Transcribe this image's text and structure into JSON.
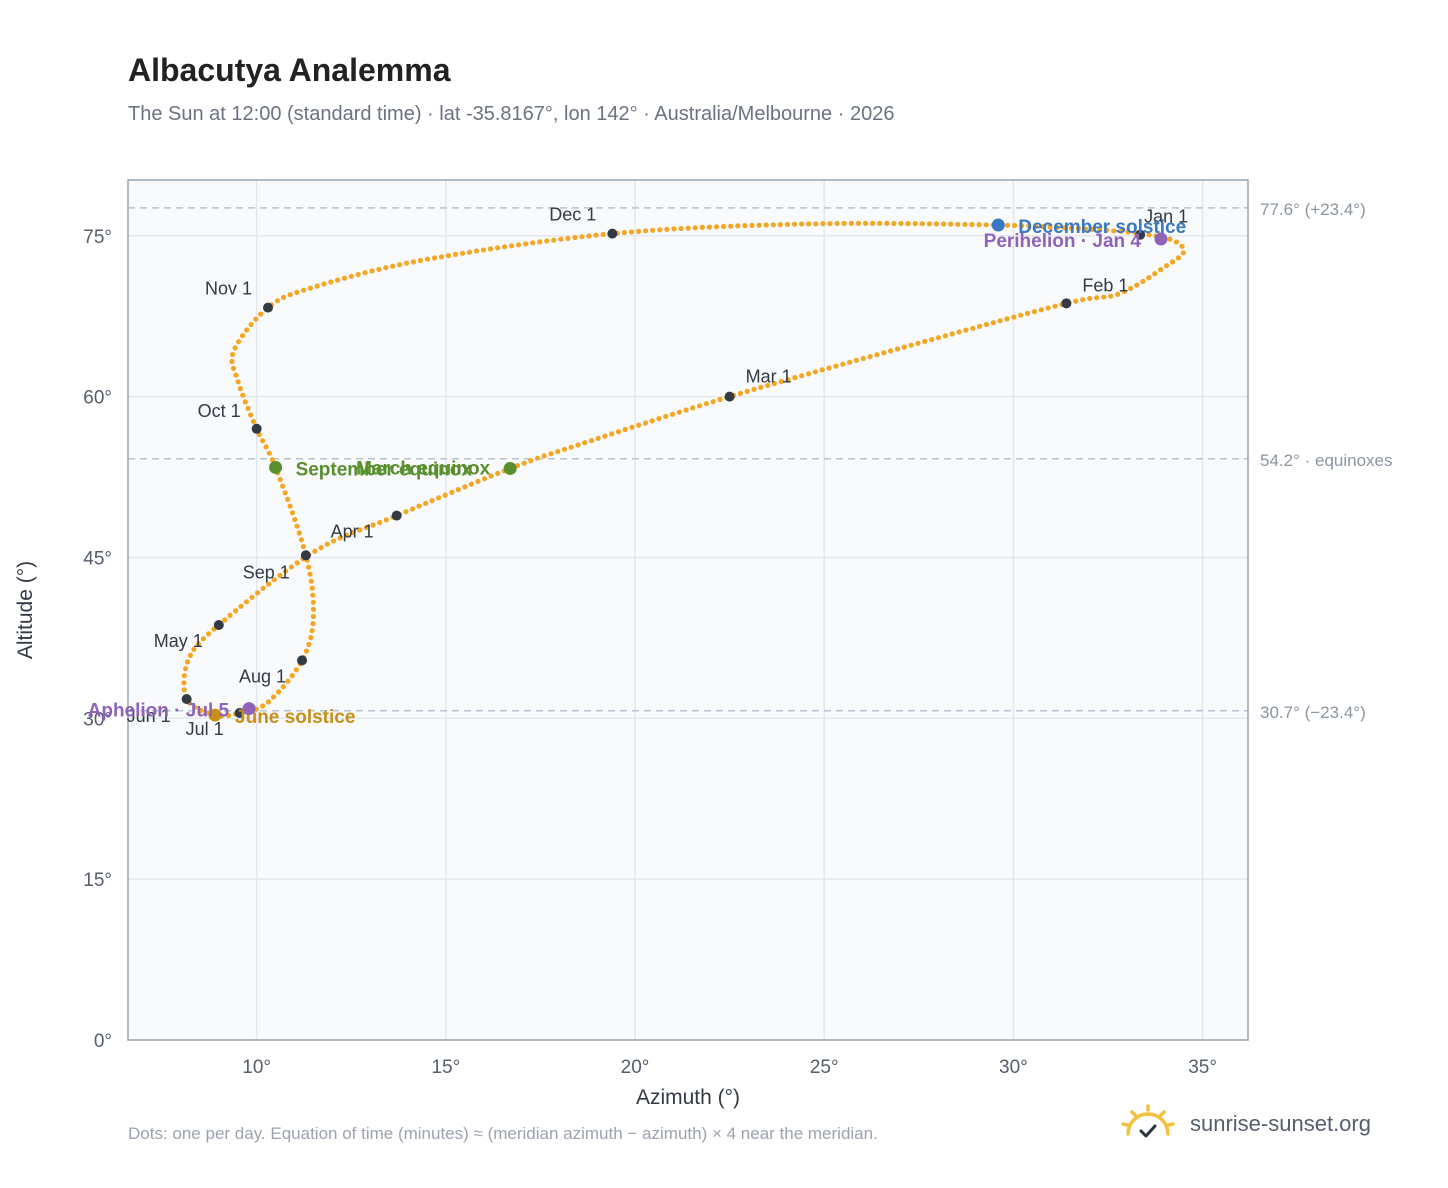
{
  "title": "Albacutya Analemma",
  "subtitle": "The Sun at 12:00 (standard time) · lat -35.8167°, lon 142° · Australia/Melbourne · 2026",
  "footnote": "Dots: one per day. Equation of time (minutes) ≈ (meridian azimuth − azimuth) × 4 near the meridian.",
  "brand": "sunrise-sunset.org",
  "colors": {
    "curve": "#f5a623",
    "month_dot": "#333a44",
    "equinox": "#5a8f2e",
    "june_solstice": "#c8901a",
    "december_solstice": "#3a78c4",
    "apsis": "#8e63b8",
    "ref_line": "#b7c4d0",
    "plot_bg": "#f8fafc",
    "grid": "#e3e8ee"
  },
  "chart_data": {
    "type": "scatter",
    "xlabel": "Azimuth (°)",
    "ylabel": "Altitude (°)",
    "xlim": [
      6.6,
      36.2
    ],
    "ylim": [
      0,
      80.2
    ],
    "x_ticks": [
      10,
      15,
      20,
      25,
      30,
      35
    ],
    "x_tick_labels": [
      "10°",
      "15°",
      "20°",
      "25°",
      "30°",
      "35°"
    ],
    "y_ticks": [
      0,
      15,
      30,
      45,
      60,
      75
    ],
    "y_tick_labels": [
      "0°",
      "15°",
      "30°",
      "45°",
      "60°",
      "75°"
    ],
    "grid": true,
    "reference_lines": [
      {
        "y": 77.6,
        "label": "77.6° (+23.4°)"
      },
      {
        "y": 54.2,
        "label": "54.2° · equinoxes"
      },
      {
        "y": 30.7,
        "label": "30.7° (−23.4°)"
      }
    ],
    "path_anchors": [
      {
        "x": 33.4,
        "y": 75.2
      },
      {
        "x": 34.2,
        "y": 74.6
      },
      {
        "x": 34.5,
        "y": 73.5
      },
      {
        "x": 34.0,
        "y": 72.1
      },
      {
        "x": 32.8,
        "y": 69.6
      },
      {
        "x": 31.4,
        "y": 68.7
      },
      {
        "x": 27.0,
        "y": 64.5
      },
      {
        "x": 22.5,
        "y": 60.0
      },
      {
        "x": 18.5,
        "y": 55.5
      },
      {
        "x": 16.7,
        "y": 53.3
      },
      {
        "x": 13.7,
        "y": 48.9
      },
      {
        "x": 11.5,
        "y": 45.5
      },
      {
        "x": 9.0,
        "y": 38.7
      },
      {
        "x": 8.2,
        "y": 35.5
      },
      {
        "x": 8.15,
        "y": 31.8
      },
      {
        "x": 8.9,
        "y": 30.3
      },
      {
        "x": 9.55,
        "y": 30.5
      },
      {
        "x": 10.3,
        "y": 31.5
      },
      {
        "x": 11.2,
        "y": 35.4
      },
      {
        "x": 11.5,
        "y": 39.5
      },
      {
        "x": 11.3,
        "y": 45.2
      },
      {
        "x": 10.5,
        "y": 53.4
      },
      {
        "x": 10.0,
        "y": 57.0
      },
      {
        "x": 9.5,
        "y": 61.5
      },
      {
        "x": 9.4,
        "y": 64.3
      },
      {
        "x": 10.3,
        "y": 68.3
      },
      {
        "x": 11.5,
        "y": 70.2
      },
      {
        "x": 14.5,
        "y": 72.8
      },
      {
        "x": 19.4,
        "y": 75.2
      },
      {
        "x": 24.5,
        "y": 76.1
      },
      {
        "x": 29.6,
        "y": 76.0
      },
      {
        "x": 32.5,
        "y": 75.5
      },
      {
        "x": 33.4,
        "y": 75.2
      }
    ],
    "month_markers": [
      {
        "label": "Jan 1",
        "x": 33.35,
        "y": 75.1,
        "anchor": "start",
        "dx": 4,
        "dy": -12
      },
      {
        "label": "Feb 1",
        "x": 31.4,
        "y": 68.7,
        "anchor": "start",
        "dx": 16,
        "dy": -12
      },
      {
        "label": "Mar 1",
        "x": 22.5,
        "y": 60.0,
        "anchor": "start",
        "dx": 16,
        "dy": -14
      },
      {
        "label": "Apr 1",
        "x": 13.7,
        "y": 48.9,
        "anchor": "start",
        "dx": -66,
        "dy": 22
      },
      {
        "label": "May 1",
        "x": 9.0,
        "y": 38.7,
        "anchor": "end",
        "dx": -16,
        "dy": 22
      },
      {
        "label": "Jun 1",
        "x": 8.15,
        "y": 31.8,
        "anchor": "end",
        "dx": -16,
        "dy": 23
      },
      {
        "label": "Jul 1",
        "x": 9.55,
        "y": 30.5,
        "anchor": "end",
        "dx": -16,
        "dy": 22
      },
      {
        "label": "Aug 1",
        "x": 11.2,
        "y": 35.4,
        "anchor": "end",
        "dx": -16,
        "dy": 22
      },
      {
        "label": "Sep 1",
        "x": 11.3,
        "y": 45.2,
        "anchor": "end",
        "dx": -16,
        "dy": 23
      },
      {
        "label": "Oct 1",
        "x": 10.0,
        "y": 57.0,
        "anchor": "end",
        "dx": -16,
        "dy": -12
      },
      {
        "label": "Nov 1",
        "x": 10.3,
        "y": 68.3,
        "anchor": "end",
        "dx": -16,
        "dy": -13
      },
      {
        "label": "Dec 1",
        "x": 19.4,
        "y": 75.2,
        "anchor": "end",
        "dx": -16,
        "dy": -13
      }
    ],
    "events": [
      {
        "label": "March equinox",
        "x": 16.7,
        "y": 53.3,
        "kind": "equinox",
        "anchor": "end",
        "dx": -20,
        "dy": 6
      },
      {
        "label": "September equinox",
        "x": 10.5,
        "y": 53.4,
        "kind": "equinox",
        "anchor": "start",
        "dx": 20,
        "dy": 8
      },
      {
        "label": "June solstice",
        "x": 8.9,
        "y": 30.3,
        "kind": "june_solstice",
        "anchor": "start",
        "dx": 20,
        "dy": 8
      },
      {
        "label": "December solstice",
        "x": 29.6,
        "y": 76.0,
        "kind": "december_solstice",
        "anchor": "start",
        "dx": 20,
        "dy": 8
      },
      {
        "label": "Perihelion · Jan 4",
        "x": 33.9,
        "y": 74.7,
        "kind": "apsis",
        "anchor": "end",
        "dx": -20,
        "dy": 8
      },
      {
        "label": "Aphelion · Jul 5",
        "x": 9.8,
        "y": 30.9,
        "kind": "apsis",
        "anchor": "end",
        "dx": -20,
        "dy": 8
      }
    ]
  }
}
